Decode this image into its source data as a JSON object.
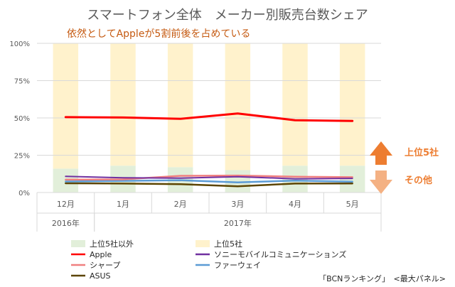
{
  "chart_data": {
    "type": "line",
    "title": "スマートフォン全体　メーカー別販売台数シェア",
    "subtitle": "依然としてAppleが5割前後を占めている",
    "categories": [
      "12月",
      "1月",
      "2月",
      "3月",
      "4月",
      "5月"
    ],
    "year_groups": [
      {
        "label": "2016年",
        "from": 0,
        "to": 0
      },
      {
        "label": "2017年",
        "from": 1,
        "to": 5
      }
    ],
    "ylim": [
      0,
      100
    ],
    "yticks": [
      0,
      25,
      50,
      75,
      100
    ],
    "ytick_labels": [
      "0%",
      "25%",
      "50%",
      "75%",
      "100%"
    ],
    "stacked_bars": [
      {
        "name": "上位5社以外",
        "color": "#e2efda",
        "values": [
          16,
          18,
          17,
          15,
          18,
          18
        ]
      },
      {
        "name": "上位5社",
        "color": "#fff2cc",
        "values": [
          84,
          82,
          83,
          85,
          82,
          82
        ]
      }
    ],
    "series": [
      {
        "name": "Apple",
        "color": "#ff0000",
        "width": 3,
        "values": [
          50.5,
          50.3,
          49.4,
          53.0,
          48.5,
          48.0
        ]
      },
      {
        "name": "ソニーモバイルコミュニケーションズ",
        "color": "#7030a0",
        "width": 2,
        "values": [
          10.8,
          9.9,
          9.6,
          10.6,
          9.2,
          9.5
        ]
      },
      {
        "name": "シャープ",
        "color": "#f08080",
        "width": 2.5,
        "values": [
          8.6,
          8.8,
          11.2,
          11.4,
          10.6,
          10.3
        ]
      },
      {
        "name": "ファーウェイ",
        "color": "#5b9bd5",
        "width": 2.5,
        "values": [
          7.4,
          7.8,
          8.2,
          6.8,
          8.0,
          7.3
        ]
      },
      {
        "name": "ASUS",
        "color": "#5c4400",
        "width": 2.5,
        "values": [
          6.2,
          6.0,
          5.6,
          4.2,
          6.0,
          6.1
        ]
      }
    ],
    "legend": [
      {
        "label": "上位5社以外",
        "kind": "box",
        "color": "#e2efda"
      },
      {
        "label": "上位5社",
        "kind": "box",
        "color": "#fff2cc"
      },
      {
        "label": "Apple",
        "kind": "line",
        "color": "#ff0000"
      },
      {
        "label": "ソニーモバイルコミュニケーションズ",
        "kind": "line",
        "color": "#7030a0"
      },
      {
        "label": "シャープ",
        "kind": "line",
        "color": "#f08080"
      },
      {
        "label": "ファーウェイ",
        "kind": "line",
        "color": "#5b9bd5"
      },
      {
        "label": "ASUS",
        "kind": "line",
        "color": "#5c4400"
      }
    ],
    "annotations": {
      "up_label": "上位5社",
      "down_label": "その他",
      "arrow_up_color": "#ed7d31",
      "arrow_down_color": "#f4b183",
      "label_color": "#ed7d31"
    },
    "source": "「BCNランキング」　<最大パネル>"
  },
  "colors": {
    "title": "#595959",
    "subtitle": "#c55a11",
    "grid": "#d9d9d9",
    "axis_text": "#595959"
  }
}
